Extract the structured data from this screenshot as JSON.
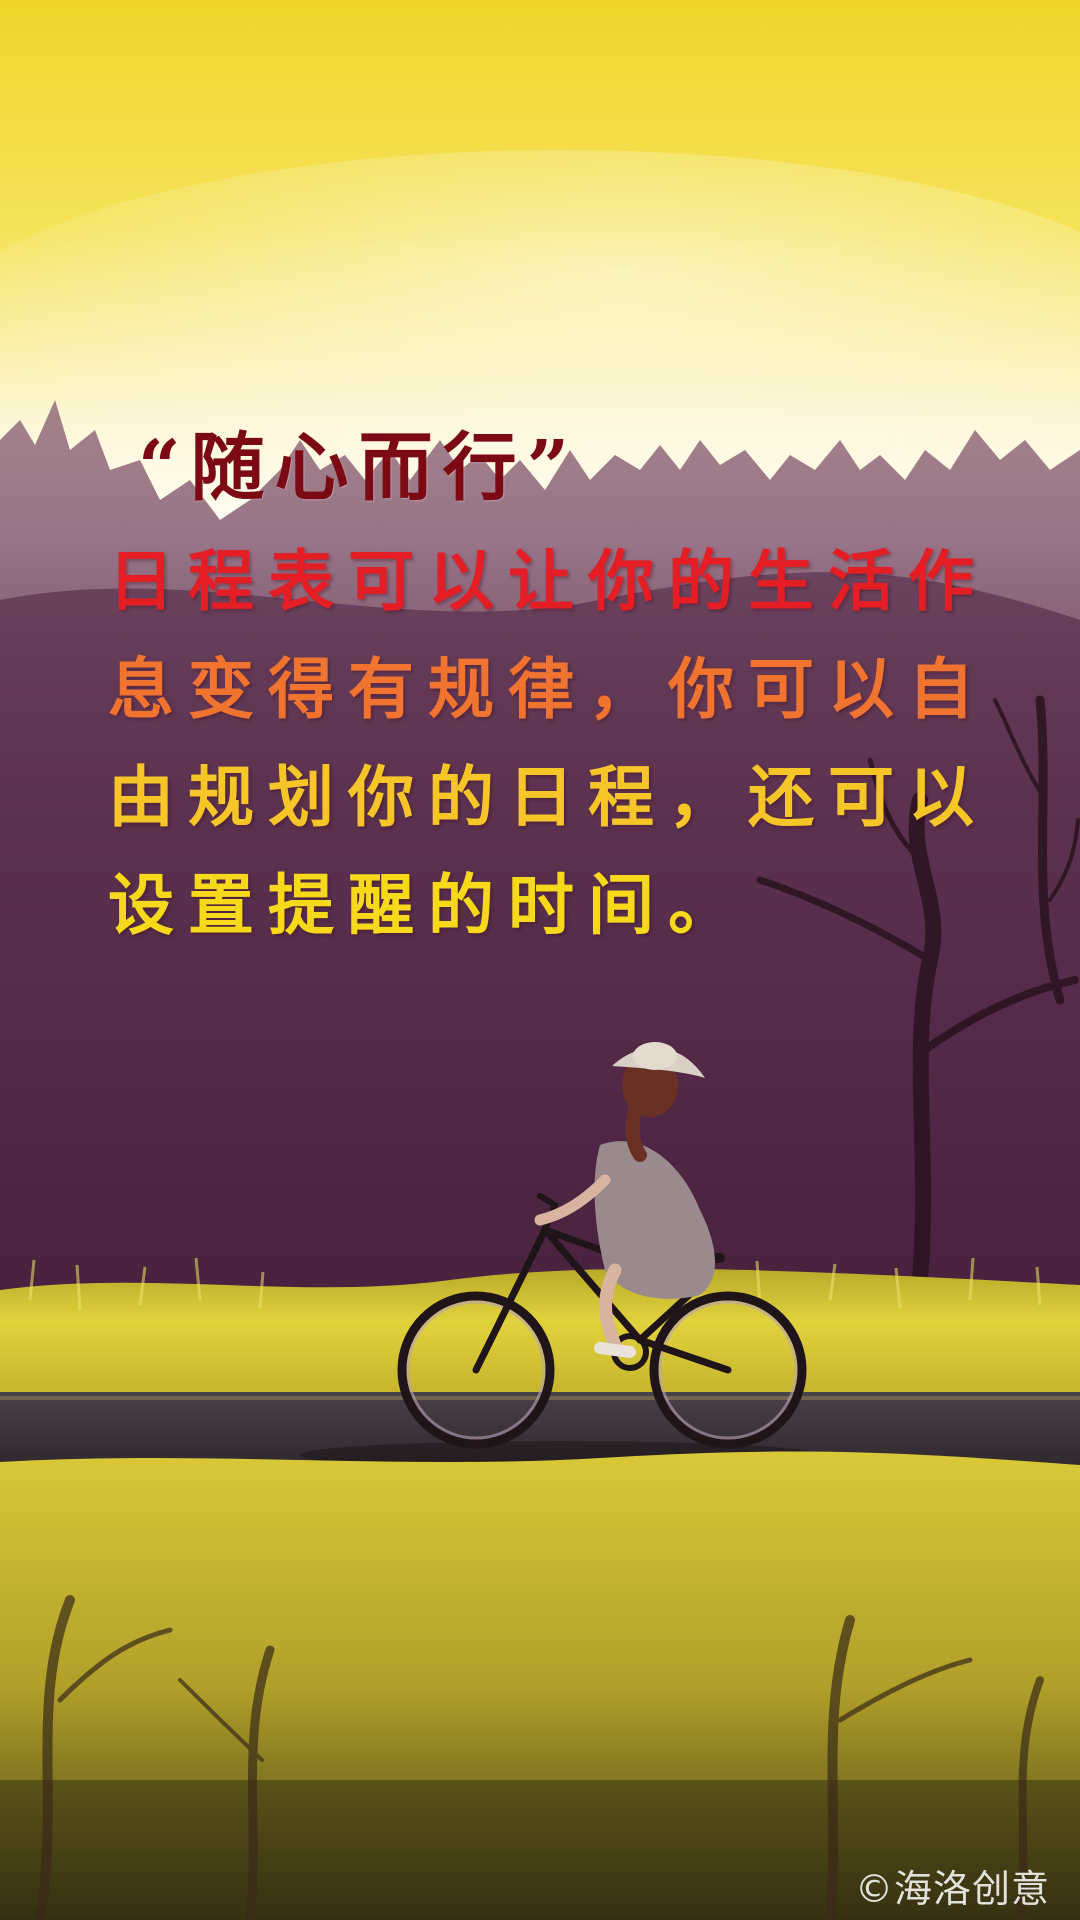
{
  "poster": {
    "title": "“随心而行”",
    "lines": [
      "日程表可以让你的生活作",
      "息变得有规律，你可以自",
      "由规划你的日程，还可以",
      "设置提醒的时间。"
    ],
    "watermark": "©海洛创意"
  },
  "colors": {
    "title": "#7c0a14",
    "line_1": "#e51d24",
    "line_2": "#f07330",
    "line_3": "#f6c628",
    "line_4": "#f6d91a",
    "sky_top": "#f3df45",
    "sky_glow": "#fffbe8",
    "forest": "#5a2a4a",
    "grass": "#d3c331",
    "road": "#3a3236"
  }
}
